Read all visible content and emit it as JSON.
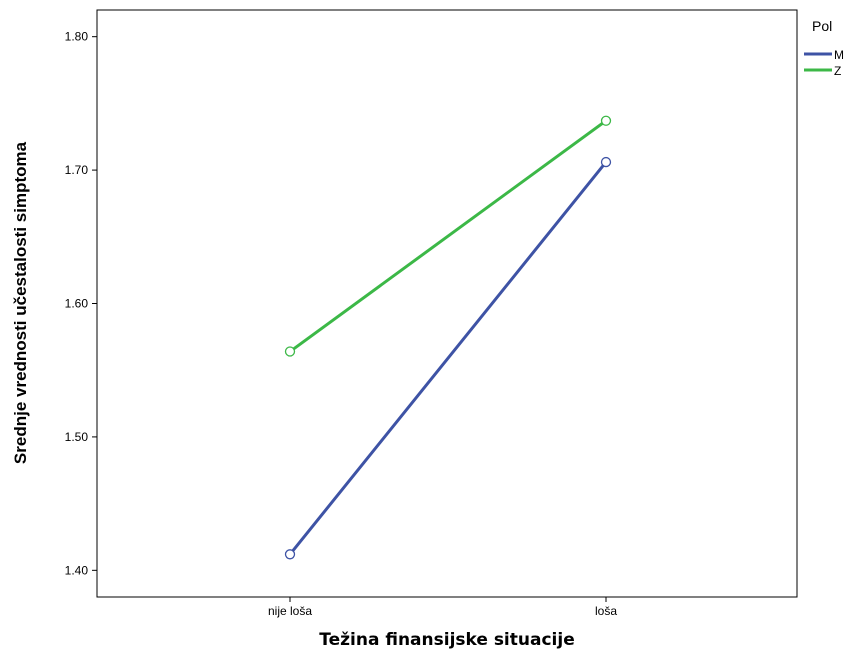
{
  "chart_data": {
    "type": "line",
    "xlabel": "Težina finansijske situacije",
    "ylabel": "Srednje vrednosti učestalosti simptoma",
    "categories": [
      "nije loša",
      "loša"
    ],
    "y_ticks": [
      "1.40",
      "1.50",
      "1.60",
      "1.70",
      "1.80"
    ],
    "ylim": [
      1.38,
      1.82
    ],
    "legend_position": "right",
    "legend_title": "Pol",
    "grid": false,
    "series": [
      {
        "name": "M",
        "color": "#3e53a5",
        "values": [
          1.412,
          1.706
        ]
      },
      {
        "name": "Z",
        "color": "#3cb847",
        "values": [
          1.564,
          1.737
        ]
      }
    ]
  }
}
